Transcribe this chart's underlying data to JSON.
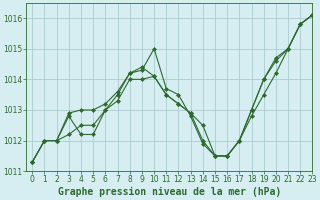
{
  "background_color": "#d6eef2",
  "grid_color": "#aacccc",
  "line_color": "#2d6a2d",
  "marker_color": "#2d6a2d",
  "xlabel": "Graphe pression niveau de la mer (hPa)",
  "xlabel_fontsize": 7,
  "xlim": [
    -0.5,
    23
  ],
  "ylim": [
    1011,
    1016.5
  ],
  "yticks": [
    1011,
    1012,
    1013,
    1014,
    1015,
    1016
  ],
  "xticks": [
    0,
    1,
    2,
    3,
    4,
    5,
    6,
    7,
    8,
    9,
    10,
    11,
    12,
    13,
    14,
    15,
    16,
    17,
    18,
    19,
    20,
    21,
    22,
    23
  ],
  "tick_fontsize": 5.5,
  "series": [
    [
      1011.3,
      1012.0,
      1012.0,
      1012.8,
      1012.2,
      1012.2,
      1013.0,
      1013.5,
      1014.2,
      1014.3,
      1015.0,
      1013.7,
      1013.5,
      1012.8,
      1011.9,
      1011.5,
      1011.5,
      1012.0,
      1013.0,
      1014.0,
      1014.7,
      1015.0,
      1015.8,
      1016.1
    ],
    [
      1011.3,
      1012.0,
      1012.0,
      1012.2,
      1012.5,
      1012.5,
      1013.0,
      1013.3,
      1014.0,
      1014.0,
      1014.1,
      1013.5,
      1013.2,
      1012.9,
      1012.0,
      1011.5,
      1011.5,
      1012.0,
      1012.8,
      1013.5,
      1014.2,
      1015.0,
      1015.8,
      1016.1
    ],
    [
      1011.3,
      1012.0,
      1012.0,
      1012.9,
      1013.0,
      1013.0,
      1013.2,
      1013.6,
      1014.2,
      1014.4,
      1014.1,
      1013.5,
      1013.2,
      1012.9,
      1012.5,
      1011.5,
      1011.5,
      1012.0,
      1013.0,
      1014.0,
      1014.6,
      1015.0,
      1015.8,
      1016.1
    ]
  ]
}
